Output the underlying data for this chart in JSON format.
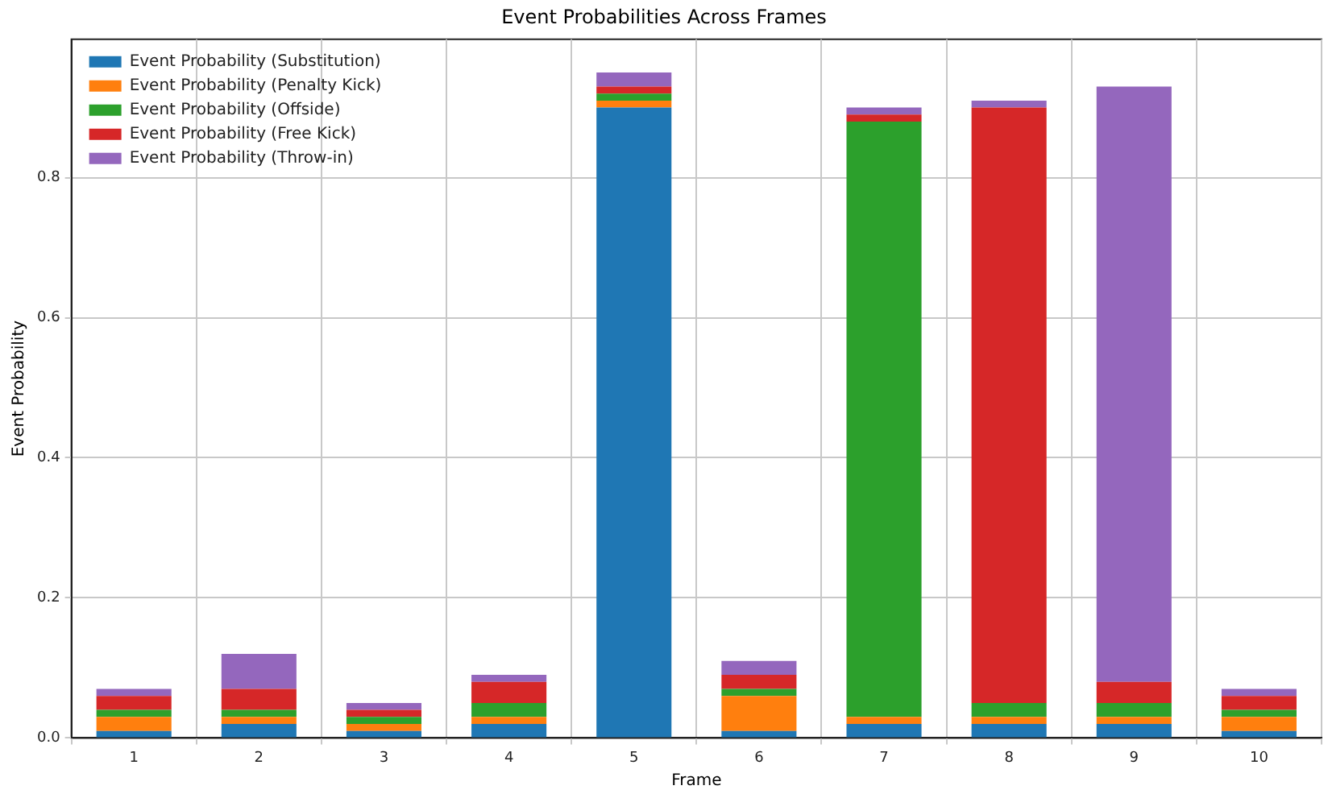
{
  "chart_data": {
    "type": "bar",
    "title": "Event Probabilities Across Frames",
    "xlabel": "Frame",
    "ylabel": "Event Probability",
    "categories": [
      "1",
      "2",
      "3",
      "4",
      "5",
      "6",
      "7",
      "8",
      "9",
      "10"
    ],
    "stacked": true,
    "ylim": [
      0,
      0.9975
    ],
    "yticks": [
      {
        "value": 0,
        "label": "0.0"
      },
      {
        "value": 0.2,
        "label": "0.2"
      },
      {
        "value": 0.4,
        "label": "0.4"
      },
      {
        "value": 0.6,
        "label": "0.6"
      },
      {
        "value": 0.8,
        "label": "0.8"
      }
    ],
    "grid": true,
    "legend": "top left",
    "series": [
      {
        "name": "Event Probability (Substitution)",
        "color": "#1f77b4",
        "values": [
          0.01,
          0.02,
          0.01,
          0.02,
          0.9,
          0.01,
          0.02,
          0.02,
          0.02,
          0.01
        ]
      },
      {
        "name": "Event Probability (Penalty Kick)",
        "color": "#ff7f0e",
        "values": [
          0.02,
          0.01,
          0.01,
          0.01,
          0.01,
          0.05,
          0.01,
          0.01,
          0.01,
          0.02
        ]
      },
      {
        "name": "Event Probability (Offside)",
        "color": "#2ca02c",
        "values": [
          0.01,
          0.01,
          0.01,
          0.02,
          0.01,
          0.01,
          0.85,
          0.02,
          0.02,
          0.01
        ]
      },
      {
        "name": "Event Probability (Free Kick)",
        "color": "#d62728",
        "values": [
          0.02,
          0.03,
          0.01,
          0.03,
          0.01,
          0.02,
          0.01,
          0.85,
          0.03,
          0.02
        ]
      },
      {
        "name": "Event Probability (Throw-in)",
        "color": "#9467bd",
        "values": [
          0.01,
          0.05,
          0.01,
          0.01,
          0.02,
          0.02,
          0.01,
          0.01,
          0.85,
          0.01
        ]
      }
    ]
  }
}
